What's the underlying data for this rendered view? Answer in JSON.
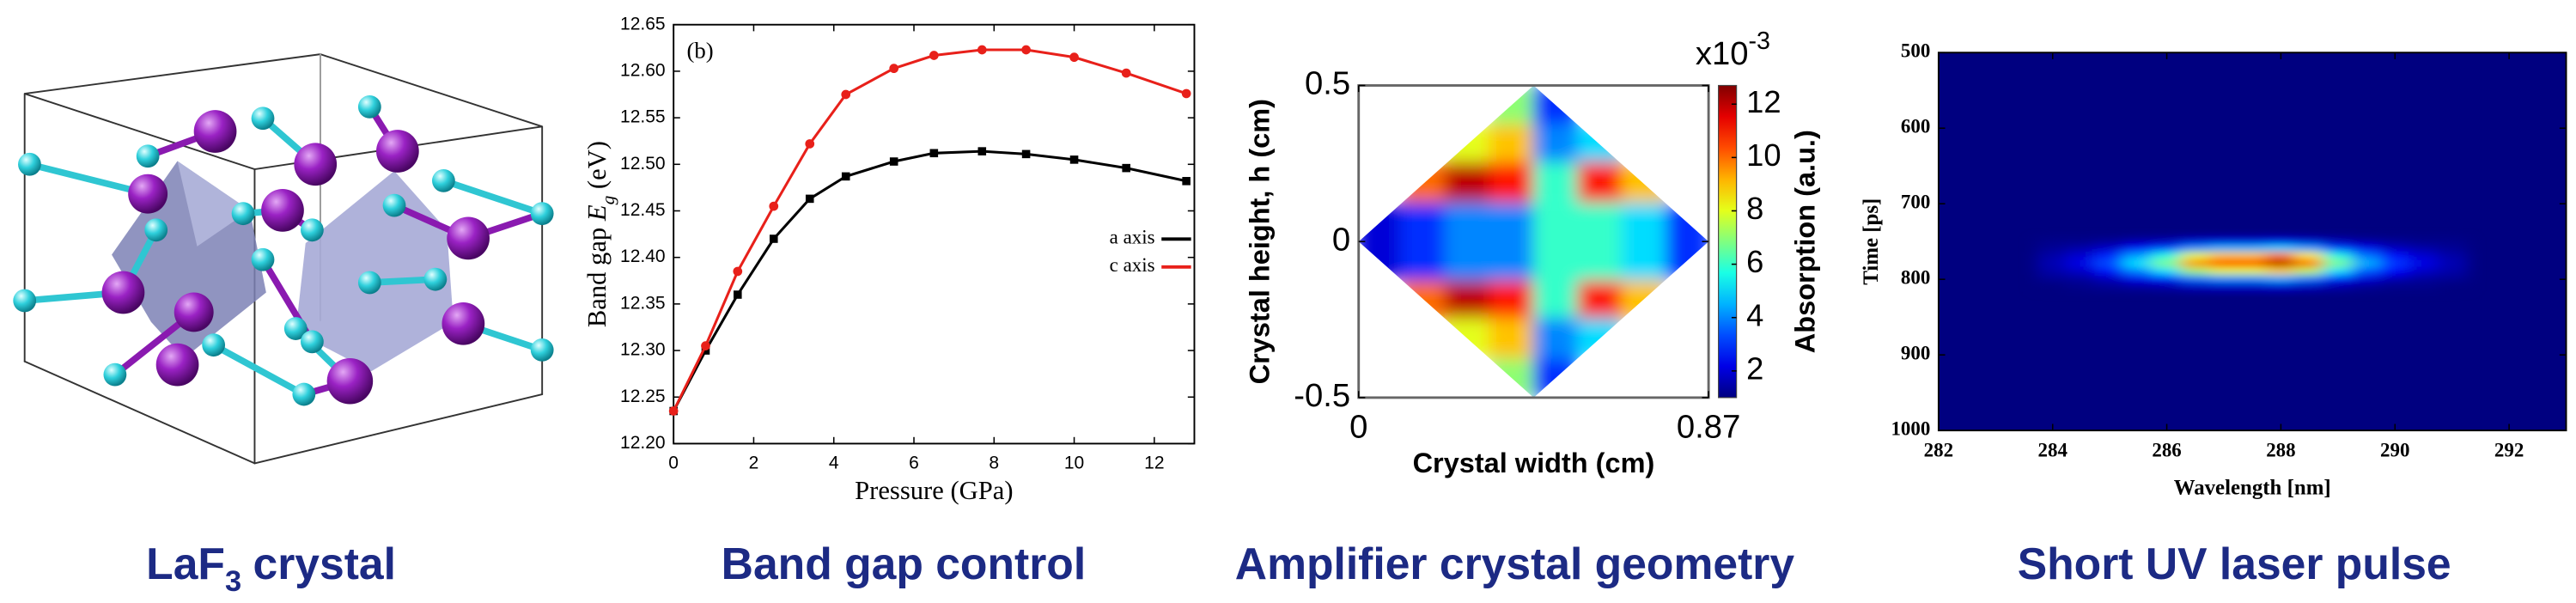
{
  "chart_data": [
    {
      "type": "line",
      "panel_label": "(b)",
      "x_label": "Pressure (GPa)",
      "y_label": {
        "text": "Band gap",
        "italic": "E",
        "sub": "g",
        "after": "(eV)"
      },
      "x": [
        0,
        0.8,
        1.6,
        2.5,
        3.4,
        4.3,
        5.5,
        6.5,
        7.7,
        8.8,
        10,
        11.3,
        12.8
      ],
      "series": [
        {
          "name": "a axis",
          "color": "#000000",
          "marker": "square",
          "values": [
            12.235,
            12.3,
            12.36,
            12.42,
            12.463,
            12.487,
            12.503,
            12.512,
            12.514,
            12.511,
            12.505,
            12.496,
            12.482
          ]
        },
        {
          "name": "c axis",
          "color": "#e8201a",
          "marker": "circle",
          "values": [
            12.235,
            12.305,
            12.385,
            12.455,
            12.522,
            12.575,
            12.603,
            12.617,
            12.623,
            12.623,
            12.615,
            12.598,
            12.576
          ]
        }
      ],
      "xlim": [
        0,
        13
      ],
      "xticks": [
        0,
        2,
        4,
        6,
        8,
        10,
        12
      ],
      "ylim": [
        12.2,
        12.65
      ],
      "yticks": [
        {
          "value": 12.2,
          "label": "12.20"
        },
        12.25,
        {
          "value": 12.3,
          "label": "12.30"
        },
        12.35,
        {
          "value": 12.4,
          "label": "12.40"
        },
        12.45,
        {
          "value": 12.5,
          "label": "12.50"
        },
        12.55,
        {
          "value": 12.6,
          "label": "12.60"
        },
        12.65
      ],
      "legend": "right"
    },
    {
      "type": "heatmap",
      "x_label": "Crystal width (cm)",
      "y_label": "Crystal height, h (cm)",
      "x": [
        0.05,
        0.16,
        0.27,
        0.38,
        0.49,
        0.6,
        0.71,
        0.82
      ],
      "y": [
        0.44,
        0.31,
        0.19,
        0.06,
        -0.06,
        -0.19,
        -0.31,
        -0.44
      ],
      "z": [
        [
          null,
          null,
          null,
          7,
          3,
          null,
          null,
          null
        ],
        [
          null,
          null,
          8,
          9,
          4,
          5,
          null,
          null
        ],
        [
          null,
          10,
          12,
          11,
          6,
          11,
          9,
          null
        ],
        [
          2,
          3,
          4,
          4,
          6,
          6,
          5,
          3
        ],
        [
          2,
          3,
          4,
          4,
          6,
          6,
          5,
          3
        ],
        [
          null,
          10,
          12,
          11,
          6,
          11,
          9,
          null
        ],
        [
          null,
          null,
          8,
          9,
          4,
          5,
          null,
          null
        ],
        [
          null,
          null,
          null,
          7,
          3,
          null,
          null,
          null
        ]
      ],
      "xlim": [
        0,
        0.87
      ],
      "xticks": [
        0,
        0.87
      ],
      "ylim": [
        -0.5,
        0.5
      ],
      "yticks": [
        -0.5,
        0,
        0.5
      ],
      "colormap": "jet",
      "zlim": [
        1,
        12.7
      ],
      "shape": "diamond",
      "colorbar": {
        "label": "Absorption (a.u.)",
        "exponent": {
          "text": "x10",
          "sup": "-3"
        },
        "ticks": [
          2,
          4,
          6,
          8,
          10,
          12
        ]
      }
    },
    {
      "type": "heatmap",
      "x_label": "Wavelength [nm]",
      "y_label": "Time [ps]",
      "x": [
        284,
        284.5,
        285,
        285.5,
        286,
        286.5,
        287,
        287.5,
        288,
        288.5,
        289,
        289.5,
        290,
        290.5,
        291
      ],
      "y": [
        750,
        760,
        770,
        780,
        790,
        800,
        810
      ],
      "z": [
        [
          0.01,
          0.01,
          0.02,
          0.04,
          0.05,
          0.08,
          0.09,
          0.09,
          0.1,
          0.08,
          0.05,
          0.03,
          0.02,
          0.01,
          0.01
        ],
        [
          0.02,
          0.04,
          0.07,
          0.12,
          0.18,
          0.26,
          0.3,
          0.3,
          0.33,
          0.28,
          0.18,
          0.11,
          0.06,
          0.04,
          0.02
        ],
        [
          0.04,
          0.08,
          0.16,
          0.28,
          0.4,
          0.6,
          0.68,
          0.68,
          0.76,
          0.64,
          0.4,
          0.24,
          0.14,
          0.08,
          0.04
        ],
        [
          0.05,
          0.1,
          0.2,
          0.35,
          0.5,
          0.75,
          0.85,
          0.85,
          0.95,
          0.8,
          0.5,
          0.3,
          0.18,
          0.1,
          0.05
        ],
        [
          0.04,
          0.07,
          0.14,
          0.25,
          0.35,
          0.53,
          0.6,
          0.6,
          0.67,
          0.56,
          0.35,
          0.21,
          0.13,
          0.07,
          0.04
        ],
        [
          0.02,
          0.03,
          0.06,
          0.11,
          0.15,
          0.23,
          0.26,
          0.26,
          0.29,
          0.24,
          0.15,
          0.09,
          0.05,
          0.03,
          0.02
        ],
        [
          0,
          0.01,
          0.02,
          0.03,
          0.04,
          0.06,
          0.07,
          0.07,
          0.08,
          0.06,
          0.04,
          0.02,
          0.01,
          0.01,
          0
        ]
      ],
      "xlim": [
        282,
        293
      ],
      "xticks": [
        282,
        284,
        286,
        288,
        290,
        292
      ],
      "ylim": [
        1000,
        500
      ],
      "yticks": [
        500,
        600,
        700,
        800,
        900,
        1000
      ],
      "colormap": "jet",
      "zlim": [
        0,
        1
      ]
    }
  ],
  "captions": [
    {
      "text": "LaF",
      "sub": "3",
      "after": "crystal"
    },
    {
      "text": "Band gap control"
    },
    {
      "text": "Amplifier crystal geometry"
    },
    {
      "text": "Short UV laser pulse"
    }
  ]
}
